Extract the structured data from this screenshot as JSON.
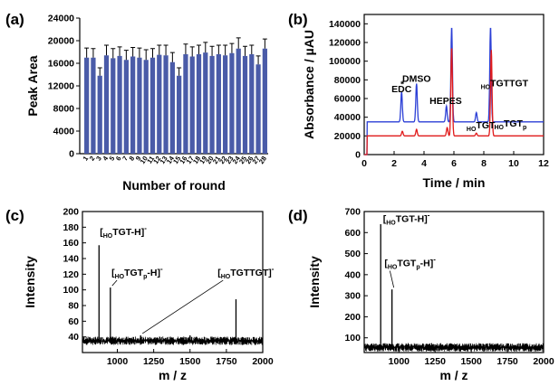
{
  "panels": {
    "a": {
      "label": "(a)"
    },
    "b": {
      "label": "(b)"
    },
    "c": {
      "label": "(c)"
    },
    "d": {
      "label": "(d)"
    }
  },
  "colors": {
    "bar": "#4a5ba8",
    "blue_trace": "#2b3fd6",
    "red_trace": "#e01a1a",
    "axis": "#000000",
    "noise": "#000000"
  },
  "chart_data": [
    {
      "id": "a",
      "type": "bar",
      "title": "",
      "xlabel": "Number of round",
      "ylabel": "Peak Area",
      "ylim": [
        0,
        24000
      ],
      "yticks": [
        0,
        4000,
        8000,
        12000,
        16000,
        20000,
        24000
      ],
      "categories": [
        "1",
        "2",
        "3",
        "4",
        "5",
        "6",
        "7",
        "8",
        "9",
        "10",
        "11",
        "12",
        "13",
        "14",
        "15",
        "16",
        "17",
        "18",
        "19",
        "20",
        "21",
        "22",
        "23",
        "24",
        "25",
        "26",
        "27",
        "28"
      ],
      "values": [
        17000,
        17000,
        13800,
        17400,
        16900,
        17300,
        16600,
        17200,
        17000,
        16600,
        17000,
        17500,
        17400,
        16200,
        13800,
        17600,
        17200,
        17600,
        17900,
        17300,
        17600,
        17400,
        17800,
        18600,
        17300,
        17600,
        15800,
        18600
      ],
      "errors": [
        1700,
        1600,
        1400,
        1800,
        1700,
        1600,
        1700,
        1600,
        1700,
        1800,
        1600,
        1700,
        1800,
        1700,
        1400,
        1800,
        1700,
        1600,
        1800,
        1700,
        1600,
        1800,
        1700,
        1900,
        1700,
        1600,
        1500,
        1700
      ],
      "grid": false
    },
    {
      "id": "b",
      "type": "line",
      "title": "",
      "xlabel": "Time / min",
      "ylabel": "Absorbance / µAU",
      "xlim": [
        0,
        12
      ],
      "ylim": [
        0,
        150000
      ],
      "xticks": [
        0,
        2,
        4,
        6,
        8,
        10,
        12
      ],
      "yticks": [
        0,
        20000,
        40000,
        60000,
        80000,
        100000,
        120000,
        140000
      ],
      "series": [
        {
          "color": "#2b3fd6",
          "baseline": 35000,
          "peaks": [
            [
              2.5,
              32000
            ],
            [
              3.5,
              41000
            ],
            [
              5.5,
              17000
            ],
            [
              5.85,
              102000
            ],
            [
              7.5,
              10000
            ],
            [
              8.45,
              102000
            ]
          ]
        },
        {
          "color": "#e01a1a",
          "baseline": 20000,
          "peaks": [
            [
              2.55,
              5000
            ],
            [
              3.5,
              7000
            ],
            [
              5.55,
              9000
            ],
            [
              5.85,
              95000
            ],
            [
              7.5,
              3000
            ],
            [
              8.5,
              92000
            ]
          ]
        }
      ],
      "annotations": [
        {
          "text": "EDC",
          "x": 2.5,
          "y": 67000
        },
        {
          "text": "*",
          "x": 2.55,
          "y": 72000
        },
        {
          "text": "DMSO",
          "x": 3.5,
          "y": 78000
        },
        {
          "text": "HEPES",
          "x": 5.45,
          "y": 54000
        },
        {
          "sub": "HO",
          "text": "TGT",
          "x": 7.45,
          "y": 28000
        },
        {
          "sub": "HO",
          "text": "TGTTGT",
          "x": 8.4,
          "y": 73000
        },
        {
          "sub": "HO",
          "text": "TGT",
          "tail": "p",
          "x": 9.3,
          "y": 30000
        }
      ],
      "grid": false
    },
    {
      "id": "c",
      "type": "line",
      "title": "",
      "xlabel": "m / z",
      "ylabel": "Intensity",
      "xlim": [
        760,
        2000
      ],
      "ylim": [
        20,
        200
      ],
      "xticks": [
        1000,
        1250,
        1500,
        1750,
        2000
      ],
      "yticks": [
        40,
        60,
        80,
        100,
        120,
        140,
        160,
        180,
        200
      ],
      "noise_level": 35,
      "peaks": [
        [
          874,
          157
        ],
        [
          952,
          103
        ],
        [
          1160,
          42
        ],
        [
          1500,
          42
        ],
        [
          1816,
          88
        ]
      ],
      "annotations": [
        {
          "pre": "[",
          "sub": "HO",
          "text": "TGT-H]",
          "sup": "-",
          "x": 880,
          "y": 170
        },
        {
          "pre": "[",
          "sub": "HO",
          "text": "TGT",
          "tail": "p",
          "after": "-H]",
          "sup": "-",
          "x": 960,
          "y": 118
        },
        {
          "pre": "[",
          "sub": "HO",
          "text": "TGTTGT]",
          "sup": "-",
          "x": 1690,
          "y": 118
        }
      ],
      "grid": false
    },
    {
      "id": "d",
      "type": "line",
      "title": "",
      "xlabel": "m / z",
      "ylabel": "Intensity",
      "xlim": [
        760,
        2000
      ],
      "ylim": [
        30,
        700
      ],
      "xticks": [
        1000,
        1250,
        1500,
        1750,
        2000
      ],
      "yticks": [
        100,
        200,
        300,
        400,
        500,
        600,
        700
      ],
      "noise_level": 55,
      "peaks": [
        [
          874,
          640
        ],
        [
          952,
          330
        ]
      ],
      "annotations": [
        {
          "pre": "[",
          "sub": "HO",
          "text": "TGT-H]",
          "sup": "-",
          "x": 890,
          "y": 650
        },
        {
          "pre": "[",
          "sub": "HO",
          "text": "TGT",
          "tail": "p",
          "after": "-H]",
          "sup": "-",
          "x": 900,
          "y": 440
        }
      ],
      "grid": false
    }
  ]
}
